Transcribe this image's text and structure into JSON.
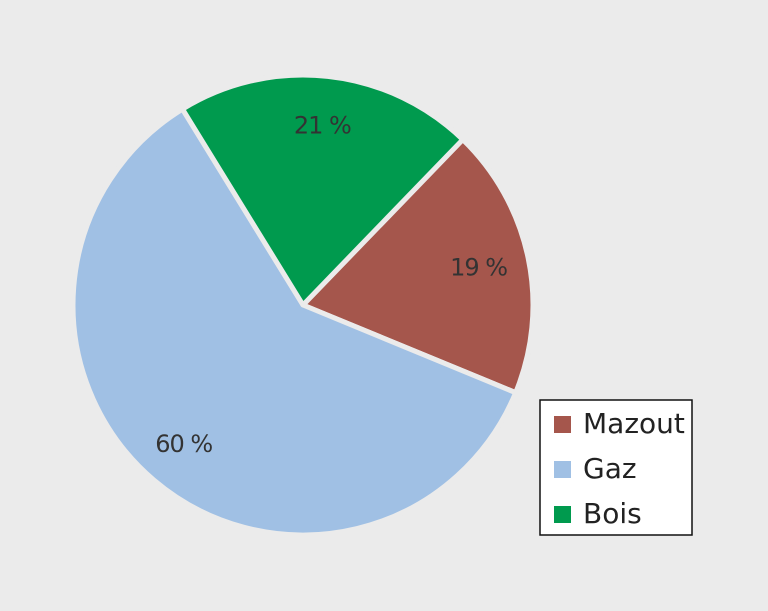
{
  "chart_data": {
    "type": "pie",
    "categories": [
      "Mazout",
      "Gaz",
      "Bois"
    ],
    "values": [
      19,
      60,
      21
    ],
    "value_labels": [
      "19 %",
      "60 %",
      "21 %"
    ],
    "colors": [
      "#a5564c",
      "#a0c0e4",
      "#009a4e"
    ],
    "legend": "lower right"
  }
}
